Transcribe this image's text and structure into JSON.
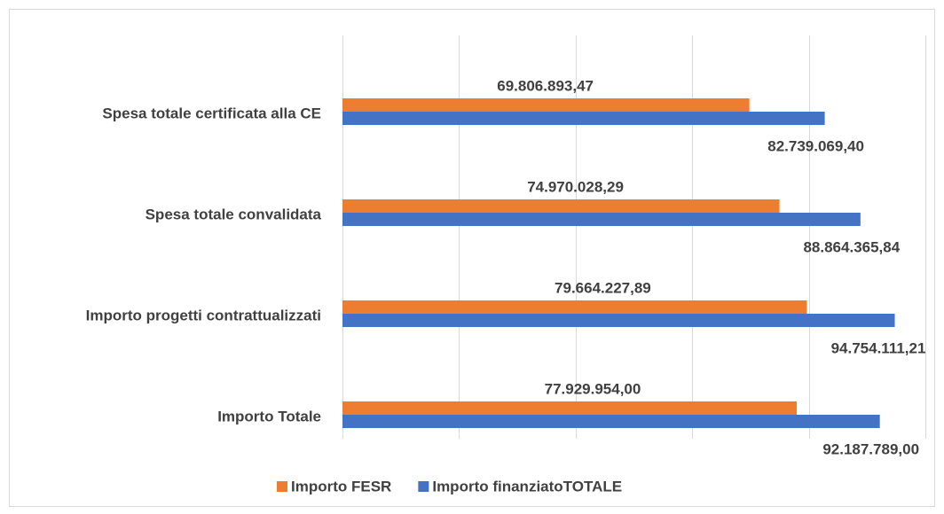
{
  "chart_data": {
    "type": "hbar",
    "categories": [
      "Spesa totale certificata alla CE",
      "Spesa totale convalidata",
      "Importo progetti contrattualizzati",
      "Importo Totale"
    ],
    "series": [
      {
        "name": "Importo FESR",
        "color": "#ed7d31",
        "values": [
          69806893.47,
          74970028.29,
          79664227.89,
          77929954.0
        ],
        "value_labels": [
          "69.806.893,47",
          "74.970.028,29",
          "79.664.227,89",
          "77.929.954,00"
        ]
      },
      {
        "name": "Importo finanziatoTOTALE",
        "color": "#4472c4",
        "values": [
          82739069.4,
          88864365.84,
          94754111.21,
          92187789.0
        ],
        "value_labels": [
          "82.739.069,40",
          "88.864.365,84",
          "94.754.111,21",
          "92.187.789,00"
        ]
      }
    ],
    "xlim": [
      0,
      100000000
    ],
    "xticks": [
      0,
      20000000,
      40000000,
      60000000,
      80000000,
      100000000
    ],
    "grid": true,
    "legend": "bottom"
  }
}
